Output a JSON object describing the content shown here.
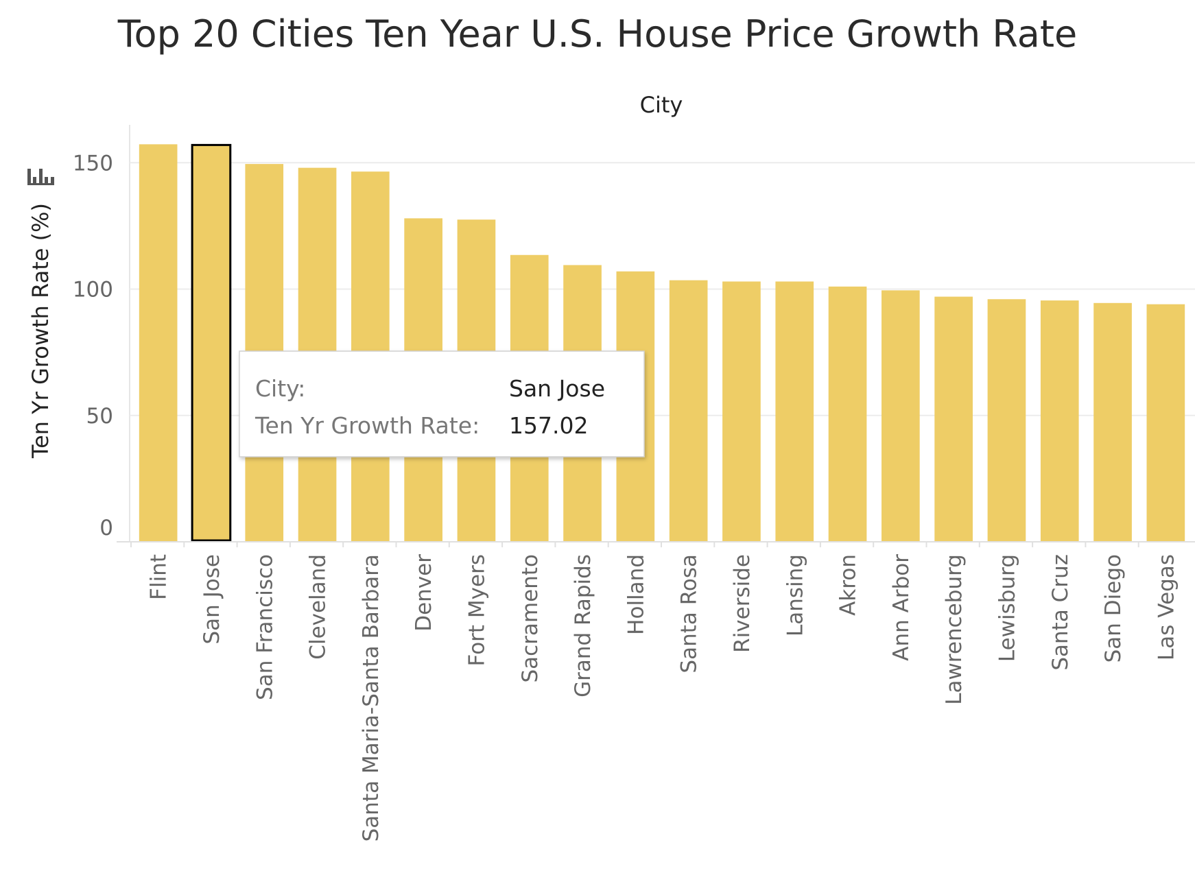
{
  "chart_data": {
    "type": "bar",
    "title": "Top 20 Cities Ten Year U.S. House Price Growth Rate",
    "column_header": "City",
    "ylabel": "Ten Yr Growth Rate (%)",
    "ylim": [
      0,
      165
    ],
    "yticks": [
      0,
      50,
      100,
      150
    ],
    "grid": true,
    "bar_color": "#eecd66",
    "highlight_border_color": "#000000",
    "categories": [
      "Flint",
      "San Jose",
      "San Francisco",
      "Cleveland",
      "Santa Maria-Santa Barbara",
      "Denver",
      "Fort Myers",
      "Sacramento",
      "Grand Rapids",
      "Holland",
      "Santa Rosa",
      "Riverside",
      "Lansing",
      "Akron",
      "Ann Arbor",
      "Lawrenceburg",
      "Lewisburg",
      "Santa Cruz",
      "San Diego",
      "Las Vegas"
    ],
    "values": [
      157.3,
      157.02,
      149.5,
      148.0,
      146.5,
      128.0,
      127.5,
      113.5,
      109.5,
      107.0,
      103.5,
      103.0,
      103.0,
      101.0,
      99.5,
      97.0,
      96.0,
      95.5,
      94.5,
      94.0
    ],
    "highlighted_category": "San Jose",
    "tooltip": {
      "city_label": "City:",
      "city_value": "San Jose",
      "rate_label": "Ten Yr Growth Rate:",
      "rate_value": "157.02"
    }
  },
  "icons": {
    "axis_sort": "bar-chart-sort-icon"
  }
}
